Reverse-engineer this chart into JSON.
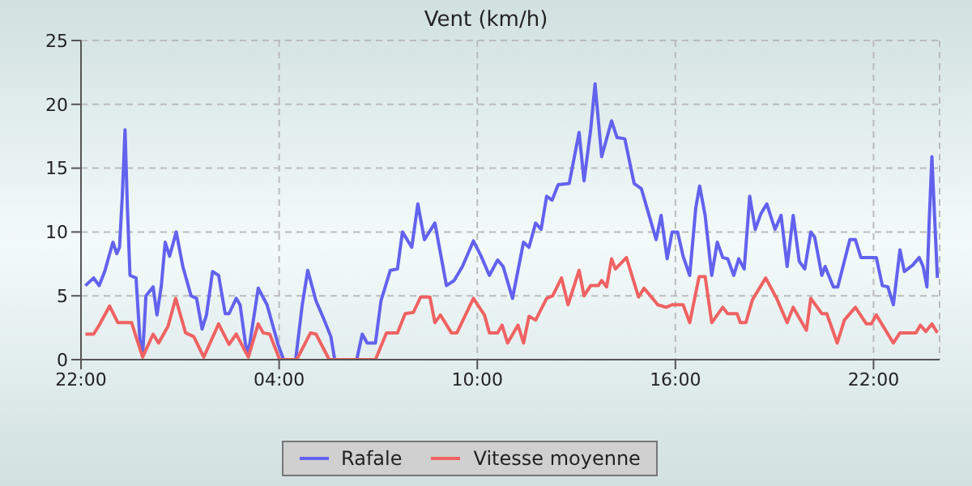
{
  "chart_data": {
    "type": "line",
    "title": "Vent (km/h)",
    "xlim": [
      "2000-01-01T22:00",
      "2000-01-03T00:00"
    ],
    "ylim": [
      0,
      25
    ],
    "xticks": [
      {
        "value": "2000-01-01T22:00",
        "label": "22:00"
      },
      {
        "value": "2000-01-02T04:00",
        "label": "04:00"
      },
      {
        "value": "2000-01-02T10:00",
        "label": "10:00"
      },
      {
        "value": "2000-01-02T16:00",
        "label": "16:00"
      },
      {
        "value": "2000-01-02T22:00",
        "label": "22:00"
      }
    ],
    "yticks": [
      0,
      5,
      10,
      15,
      20,
      25
    ],
    "grid": true,
    "legend": "bottom",
    "marker": "none",
    "line_style": "solid",
    "series": [
      {
        "name": "Rafale",
        "color": "#6262ee",
        "x": [
          "2000-01-01T22:08",
          "2000-01-01T22:23",
          "2000-01-01T22:33",
          "2000-01-01T22:43",
          "2000-01-01T22:58",
          "2000-01-01T23:05",
          "2000-01-01T23:10",
          "2000-01-01T23:15",
          "2000-01-01T23:20",
          "2000-01-01T23:24",
          "2000-01-01T23:29",
          "2000-01-01T23:40",
          "2000-01-01T23:47",
          "2000-01-01T23:52",
          "2000-01-01T23:58",
          "2000-01-02T00:11",
          "2000-01-02T00:18",
          "2000-01-02T00:26",
          "2000-01-02T00:33",
          "2000-01-02T00:41",
          "2000-01-02T00:53",
          "2000-01-02T01:05",
          "2000-01-02T01:20",
          "2000-01-02T01:30",
          "2000-01-02T01:40",
          "2000-01-02T01:48",
          "2000-01-02T01:59",
          "2000-01-02T02:10",
          "2000-01-02T02:22",
          "2000-01-02T02:29",
          "2000-01-02T02:42",
          "2000-01-02T02:49",
          "2000-01-02T02:59",
          "2000-01-02T03:04",
          "2000-01-02T03:22",
          "2000-01-02T03:38",
          "2000-01-02T03:58",
          "2000-01-02T04:08",
          "2000-01-02T04:30",
          "2000-01-02T04:42",
          "2000-01-02T04:52",
          "2000-01-02T05:07",
          "2000-01-02T05:22",
          "2000-01-02T05:34",
          "2000-01-02T05:41",
          "2000-01-02T06:21",
          "2000-01-02T06:31",
          "2000-01-02T06:40",
          "2000-01-02T06:55",
          "2000-01-02T07:05",
          "2000-01-02T07:22",
          "2000-01-02T07:35",
          "2000-01-02T07:44",
          "2000-01-02T08:01",
          "2000-01-02T08:12",
          "2000-01-02T08:24",
          "2000-01-02T08:43",
          "2000-01-02T09:04",
          "2000-01-02T09:18",
          "2000-01-02T09:33",
          "2000-01-02T09:53",
          "2000-01-02T10:07",
          "2000-01-02T10:22",
          "2000-01-02T10:37",
          "2000-01-02T10:47",
          "2000-01-02T11:04",
          "2000-01-02T11:24",
          "2000-01-02T11:34",
          "2000-01-02T11:46",
          "2000-01-02T11:56",
          "2000-01-02T12:06",
          "2000-01-02T12:16",
          "2000-01-02T12:27",
          "2000-01-02T12:47",
          "2000-01-02T13:05",
          "2000-01-02T13:14",
          "2000-01-02T13:26",
          "2000-01-02T13:34",
          "2000-01-02T13:46",
          "2000-01-02T14:04",
          "2000-01-02T14:14",
          "2000-01-02T14:28",
          "2000-01-02T14:45",
          "2000-01-02T14:58",
          "2000-01-02T15:25",
          "2000-01-02T15:34",
          "2000-01-02T15:45",
          "2000-01-02T15:54",
          "2000-01-02T16:04",
          "2000-01-02T16:14",
          "2000-01-02T16:26",
          "2000-01-02T16:37",
          "2000-01-02T16:44",
          "2000-01-02T16:54",
          "2000-01-02T17:06",
          "2000-01-02T17:16",
          "2000-01-02T17:26",
          "2000-01-02T17:35",
          "2000-01-02T17:46",
          "2000-01-02T17:55",
          "2000-01-02T18:05",
          "2000-01-02T18:15",
          "2000-01-02T18:25",
          "2000-01-02T18:35",
          "2000-01-02T18:46",
          "2000-01-02T19:01",
          "2000-01-02T19:12",
          "2000-01-02T19:23",
          "2000-01-02T19:34",
          "2000-01-02T19:45",
          "2000-01-02T19:55",
          "2000-01-02T20:06",
          "2000-01-02T20:13",
          "2000-01-02T20:26",
          "2000-01-02T20:32",
          "2000-01-02T20:47",
          "2000-01-02T20:55",
          "2000-01-02T21:17",
          "2000-01-02T21:27",
          "2000-01-02T21:37",
          "2000-01-02T22:05",
          "2000-01-02T22:16",
          "2000-01-02T22:26",
          "2000-01-02T22:36",
          "2000-01-02T22:48",
          "2000-01-02T22:56",
          "2000-01-02T23:11",
          "2000-01-02T23:23",
          "2000-01-02T23:30",
          "2000-01-02T23:37",
          "2000-01-02T23:41",
          "2000-01-02T23:46",
          "2000-01-02T23:51",
          "2000-01-02T23:56"
        ],
        "values": [
          5.8,
          6.4,
          5.8,
          6.9,
          9.2,
          8.3,
          8.8,
          12.8,
          18.0,
          12.3,
          6.6,
          6.4,
          1.6,
          0.3,
          5.0,
          5.7,
          3.5,
          5.8,
          9.2,
          8.1,
          10.0,
          7.3,
          5.0,
          4.8,
          2.4,
          3.5,
          6.9,
          6.6,
          3.6,
          3.6,
          4.8,
          4.3,
          1.2,
          0.5,
          5.6,
          4.3,
          1.2,
          0,
          0,
          4.3,
          7.0,
          4.6,
          3.1,
          1.8,
          0,
          0,
          2.0,
          1.3,
          1.3,
          4.6,
          7.0,
          7.1,
          10.0,
          8.8,
          12.2,
          9.4,
          10.7,
          5.8,
          6.2,
          7.3,
          9.3,
          8.1,
          6.6,
          7.8,
          7.3,
          4.8,
          9.2,
          8.8,
          10.7,
          10.2,
          12.8,
          12.5,
          13.7,
          13.8,
          17.8,
          14.0,
          18.0,
          21.6,
          15.9,
          18.7,
          17.4,
          17.3,
          13.8,
          13.4,
          9.4,
          11.3,
          7.9,
          10.0,
          10.0,
          8.1,
          6.6,
          11.9,
          13.6,
          11.3,
          6.6,
          9.2,
          8.0,
          7.9,
          6.6,
          7.9,
          7.1,
          12.8,
          10.2,
          11.4,
          12.2,
          10.2,
          11.3,
          7.3,
          11.3,
          7.7,
          7.1,
          10.0,
          9.6,
          6.6,
          7.3,
          5.7,
          5.7,
          9.4,
          9.4,
          8.0,
          8.0,
          5.8,
          5.7,
          4.3,
          8.6,
          6.9,
          7.4,
          8.0,
          7.3,
          5.7,
          10.7,
          15.9,
          11.1,
          6.4
        ]
      },
      {
        "name": "Vitesse moyenne",
        "color": "#f06262",
        "x": [
          "2000-01-01T22:08",
          "2000-01-01T22:23",
          "2000-01-01T22:33",
          "2000-01-01T22:52",
          "2000-01-01T23:07",
          "2000-01-01T23:32",
          "2000-01-01T23:40",
          "2000-01-01T23:52",
          "2000-01-02T00:11",
          "2000-01-02T00:21",
          "2000-01-02T00:38",
          "2000-01-02T00:52",
          "2000-01-02T01:10",
          "2000-01-02T01:25",
          "2000-01-02T01:43",
          "2000-01-02T02:10",
          "2000-01-02T02:29",
          "2000-01-02T02:42",
          "2000-01-02T03:04",
          "2000-01-02T03:22",
          "2000-01-02T03:31",
          "2000-01-02T03:43",
          "2000-01-02T04:01",
          "2000-01-02T04:32",
          "2000-01-02T04:57",
          "2000-01-02T05:07",
          "2000-01-02T05:31",
          "2000-01-02T06:55",
          "2000-01-02T07:15",
          "2000-01-02T07:35",
          "2000-01-02T07:49",
          "2000-01-02T08:04",
          "2000-01-02T08:17",
          "2000-01-02T08:34",
          "2000-01-02T08:43",
          "2000-01-02T08:53",
          "2000-01-02T09:13",
          "2000-01-02T09:23",
          "2000-01-02T09:53",
          "2000-01-02T10:13",
          "2000-01-02T10:22",
          "2000-01-02T10:37",
          "2000-01-02T10:45",
          "2000-01-02T10:55",
          "2000-01-02T11:14",
          "2000-01-02T11:24",
          "2000-01-02T11:34",
          "2000-01-02T11:46",
          "2000-01-02T12:06",
          "2000-01-02T12:17",
          "2000-01-02T12:33",
          "2000-01-02T12:45",
          "2000-01-02T13:05",
          "2000-01-02T13:14",
          "2000-01-02T13:26",
          "2000-01-02T13:40",
          "2000-01-02T13:46",
          "2000-01-02T13:55",
          "2000-01-02T14:04",
          "2000-01-02T14:11",
          "2000-01-02T14:31",
          "2000-01-02T14:53",
          "2000-01-02T15:03",
          "2000-01-02T15:28",
          "2000-01-02T15:43",
          "2000-01-02T15:54",
          "2000-01-02T16:14",
          "2000-01-02T16:26",
          "2000-01-02T16:43",
          "2000-01-02T16:54",
          "2000-01-02T17:06",
          "2000-01-02T17:26",
          "2000-01-02T17:35",
          "2000-01-02T17:52",
          "2000-01-02T17:58",
          "2000-01-02T18:08",
          "2000-01-02T18:20",
          "2000-01-02T18:44",
          "2000-01-02T19:04",
          "2000-01-02T19:23",
          "2000-01-02T19:34",
          "2000-01-02T19:58",
          "2000-01-02T20:06",
          "2000-01-02T20:26",
          "2000-01-02T20:35",
          "2000-01-02T20:54",
          "2000-01-02T21:07",
          "2000-01-02T21:27",
          "2000-01-02T21:47",
          "2000-01-02T21:56",
          "2000-01-02T22:05",
          "2000-01-02T22:36",
          "2000-01-02T22:48",
          "2000-01-02T23:17",
          "2000-01-02T23:25",
          "2000-01-02T23:35",
          "2000-01-02T23:46",
          "2000-01-02T23:56"
        ],
        "values": [
          2.0,
          2.0,
          2.7,
          4.2,
          2.9,
          2.9,
          1.8,
          0.2,
          2.0,
          1.3,
          2.6,
          4.8,
          2.1,
          1.8,
          0.2,
          2.8,
          1.2,
          2.0,
          0.2,
          2.8,
          2.1,
          2.0,
          0,
          0,
          2.1,
          2.0,
          0,
          0,
          2.1,
          2.1,
          3.6,
          3.7,
          4.9,
          4.9,
          2.9,
          3.5,
          2.1,
          2.1,
          4.8,
          3.5,
          2.1,
          2.1,
          2.7,
          1.3,
          2.7,
          1.3,
          3.4,
          3.1,
          4.8,
          5.0,
          6.4,
          4.3,
          7.0,
          5.0,
          5.8,
          5.8,
          6.2,
          5.7,
          7.9,
          7.1,
          8.0,
          4.9,
          5.6,
          4.3,
          4.1,
          4.3,
          4.3,
          2.9,
          6.5,
          6.5,
          2.9,
          4.1,
          3.6,
          3.6,
          2.9,
          2.9,
          4.7,
          6.4,
          4.8,
          2.9,
          4.1,
          2.3,
          4.8,
          3.6,
          3.6,
          1.3,
          3.1,
          4.1,
          2.8,
          2.8,
          3.5,
          1.3,
          2.1,
          2.1,
          2.7,
          2.2,
          2.8,
          2.1
        ]
      }
    ]
  }
}
